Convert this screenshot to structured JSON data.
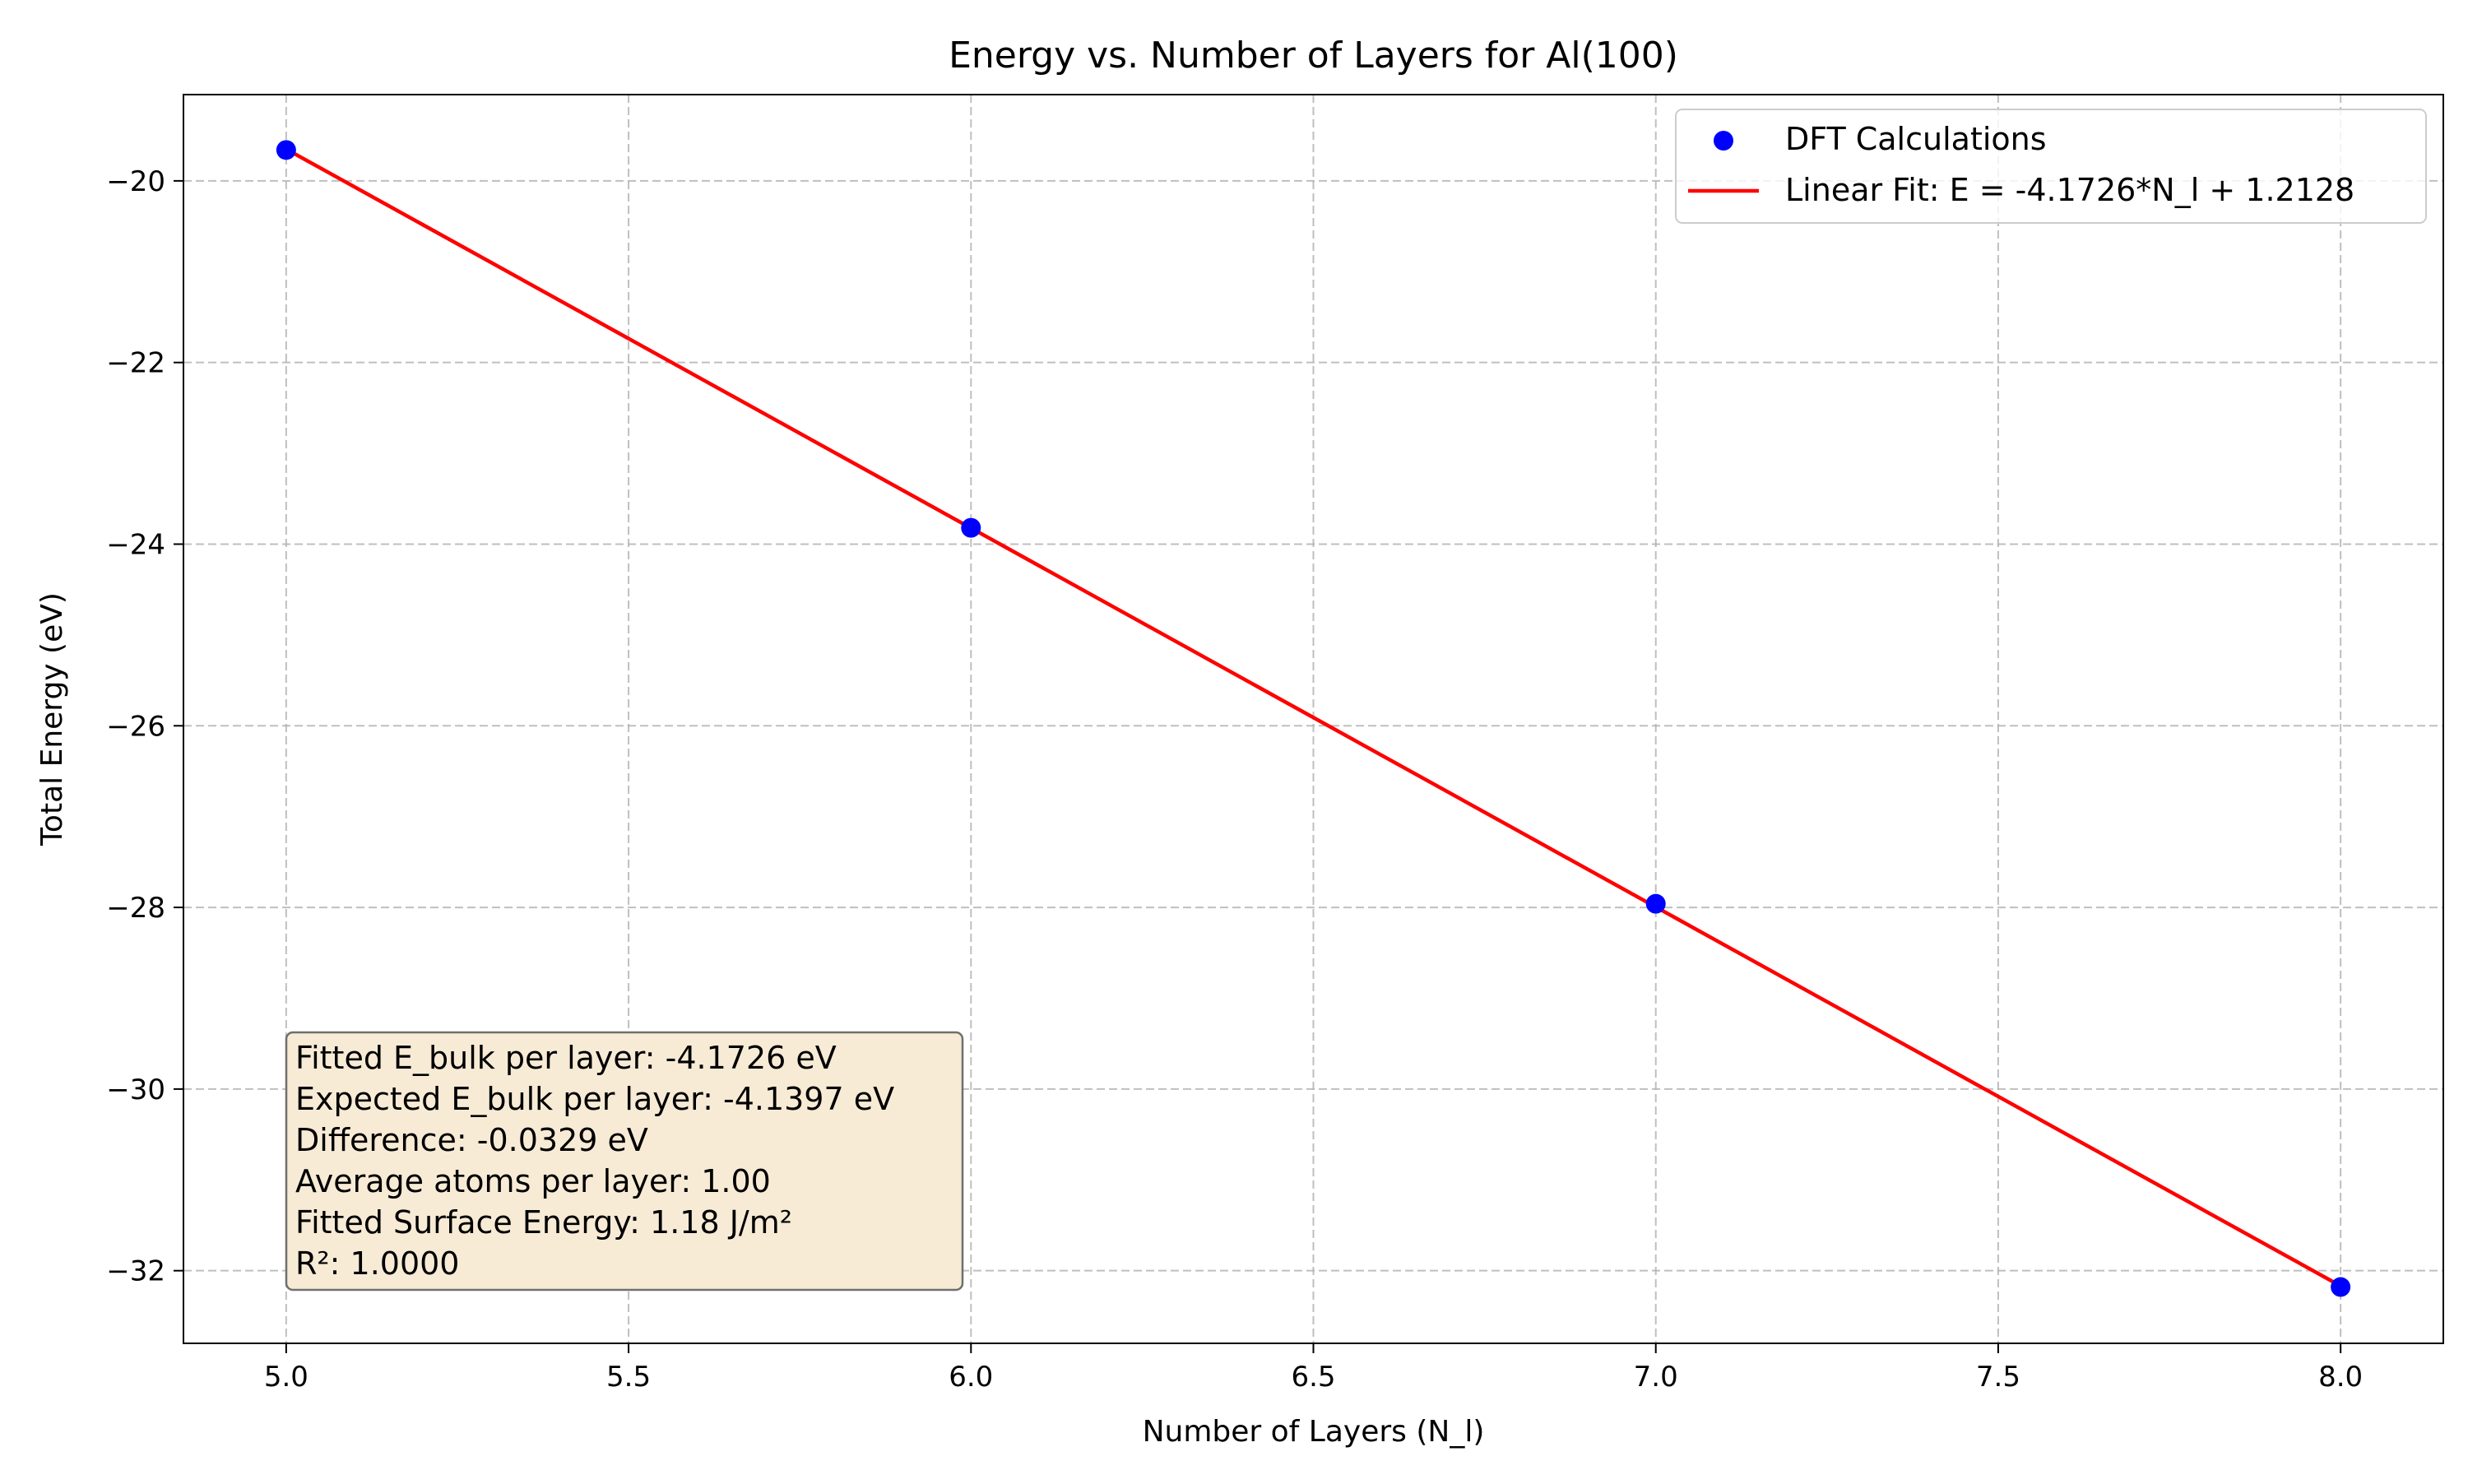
{
  "chart_data": {
    "type": "scatter",
    "title": "Energy vs. Number of Layers for Al(100)",
    "xlabel": "Number of Layers (N_l)",
    "ylabel": "Total Energy (eV)",
    "xlim": [
      4.85,
      8.15
    ],
    "ylim": [
      -32.8,
      -19.05
    ],
    "x_ticks": [
      5.0,
      5.5,
      6.0,
      6.5,
      7.0,
      7.5,
      8.0
    ],
    "x_tick_labels": [
      "5.0",
      "5.5",
      "6.0",
      "6.5",
      "7.0",
      "7.5",
      "8.0"
    ],
    "y_ticks": [
      -20,
      -22,
      -24,
      -26,
      -28,
      -30,
      -32
    ],
    "y_tick_labels": [
      "−20",
      "−22",
      "−24",
      "−26",
      "−28",
      "−30",
      "−32"
    ],
    "grid": true,
    "legend_position": "top-right",
    "series": [
      {
        "name": "DFT Calculations",
        "kind": "scatter",
        "color": "#0000ff",
        "x": [
          5,
          6,
          7,
          8
        ],
        "y": [
          -19.66,
          -23.82,
          -27.96,
          -32.18
        ]
      },
      {
        "name": "Linear Fit: E = -4.1726*N_l + 1.2128",
        "kind": "line",
        "color": "#ff0000",
        "slope": -4.1726,
        "intercept": 1.2128,
        "x_range": [
          5,
          8
        ]
      }
    ],
    "annotation": {
      "background": "#f7ebd6",
      "border": "#6f6f6f",
      "lines": [
        "Fitted E_bulk per layer: -4.1726 eV",
        "Expected E_bulk per layer: -4.1397 eV",
        "Difference: -0.0329 eV",
        "Average atoms per layer: 1.00",
        "Fitted Surface Energy: 1.18 J/m²",
        "R²: 1.0000"
      ]
    }
  }
}
